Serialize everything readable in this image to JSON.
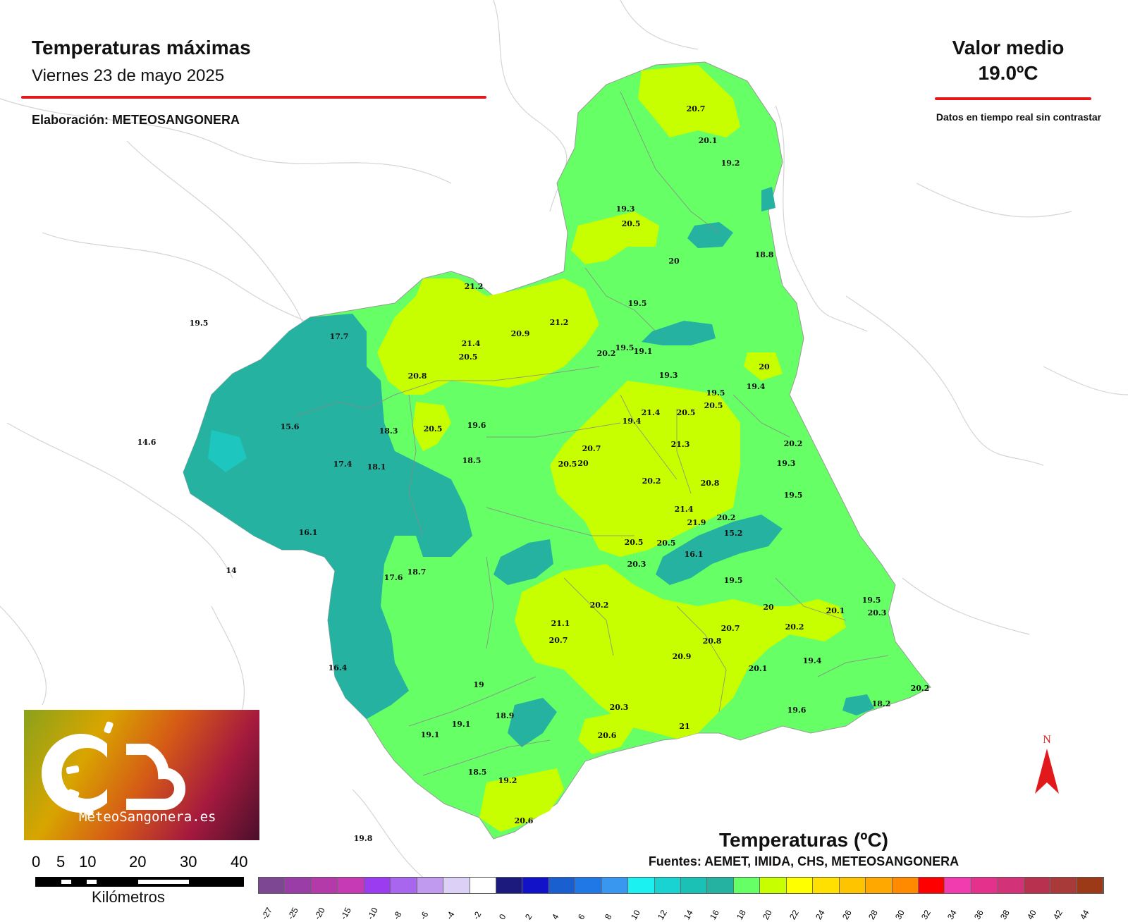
{
  "header": {
    "title": "Temperaturas máximas",
    "subtitle": "Viernes 23 de mayo 2025",
    "author": "Elaboración: METEOSANGONERA"
  },
  "summary": {
    "avg_label": "Valor medio",
    "avg_value": "19.0ºC",
    "disclaimer": "Datos en tiempo real sin contrastar"
  },
  "logo": {
    "text": "MeteoSangonera.es"
  },
  "scale": {
    "ticks": [
      "0",
      "5",
      "10",
      "20",
      "30",
      "40"
    ],
    "unit": "Kilómetros"
  },
  "legend": {
    "title": "Temperaturas (ºC)",
    "sources": "Fuentes: AEMET, IMIDA, CHS, METEOSANGONERA",
    "labels": [
      "-27",
      "-25",
      "-20",
      "-15",
      "-10",
      "-8",
      "-6",
      "-4",
      "-2",
      "0",
      "2",
      "4",
      "6",
      "8",
      "10",
      "12",
      "14",
      "16",
      "18",
      "20",
      "22",
      "24",
      "26",
      "28",
      "30",
      "32",
      "34",
      "36",
      "38",
      "40",
      "42",
      "44"
    ],
    "colors": [
      "#7d4794",
      "#9a3da6",
      "#b43aaa",
      "#c73ab6",
      "#9b3cf0",
      "#a866ef",
      "#c09aef",
      "#ddd0f6",
      "#ffffff",
      "#1c1a7d",
      "#1212c8",
      "#1a5fd0",
      "#1f78e6",
      "#3a97f0",
      "#1cf1f1",
      "#19d3d3",
      "#1cc1b5",
      "#25b2a1",
      "#66ff66",
      "#c8ff00",
      "#ffff00",
      "#ffe000",
      "#ffc400",
      "#ffa800",
      "#ff8a00",
      "#ff0000",
      "#f03caf",
      "#e4328c",
      "#d23278",
      "#b83250",
      "#a83a3a",
      "#9c3a18"
    ]
  },
  "north": {
    "label": "N"
  },
  "stations": [
    {
      "v": "20.7"
    },
    {
      "v": "20.1"
    },
    {
      "v": "19.2"
    },
    {
      "v": "19.3"
    },
    {
      "v": "20.5"
    },
    {
      "v": "20"
    },
    {
      "v": "18.8"
    },
    {
      "v": "21.2"
    },
    {
      "v": "19.5"
    },
    {
      "v": "21.2"
    },
    {
      "v": "20.9"
    },
    {
      "v": "21.4"
    },
    {
      "v": "20.5"
    },
    {
      "v": "17.7"
    },
    {
      "v": "19.5"
    },
    {
      "v": "20.2"
    },
    {
      "v": "19.5"
    },
    {
      "v": "19.1"
    },
    {
      "v": "20.8"
    },
    {
      "v": "19.3"
    },
    {
      "v": "20"
    },
    {
      "v": "19.4"
    },
    {
      "v": "19.5"
    },
    {
      "v": "20.5"
    },
    {
      "v": "21.4"
    },
    {
      "v": "20.5"
    },
    {
      "v": "19.4"
    },
    {
      "v": "15.6"
    },
    {
      "v": "18.3"
    },
    {
      "v": "20.5"
    },
    {
      "v": "19.6"
    },
    {
      "v": "14.6"
    },
    {
      "v": "21.3"
    },
    {
      "v": "20.2"
    },
    {
      "v": "20.7"
    },
    {
      "v": "20.5"
    },
    {
      "v": "20"
    },
    {
      "v": "18.5"
    },
    {
      "v": "17.4"
    },
    {
      "v": "18.1"
    },
    {
      "v": "19.3"
    },
    {
      "v": "20.2"
    },
    {
      "v": "20.8"
    },
    {
      "v": "19.5"
    },
    {
      "v": "21.4"
    },
    {
      "v": "16.1"
    },
    {
      "v": "21.9"
    },
    {
      "v": "20.2"
    },
    {
      "v": "15.2"
    },
    {
      "v": "20.5"
    },
    {
      "v": "20.5"
    },
    {
      "v": "16.1"
    },
    {
      "v": "20.3"
    },
    {
      "v": "14"
    },
    {
      "v": "17.6"
    },
    {
      "v": "18.7"
    },
    {
      "v": "19.5"
    },
    {
      "v": "19.5"
    },
    {
      "v": "20.3"
    },
    {
      "v": "20.2"
    },
    {
      "v": "20"
    },
    {
      "v": "20.1"
    },
    {
      "v": "21.1"
    },
    {
      "v": "20.7"
    },
    {
      "v": "20.2"
    },
    {
      "v": "20.7"
    },
    {
      "v": "20.8"
    },
    {
      "v": "20.9"
    },
    {
      "v": "20.1"
    },
    {
      "v": "19.4"
    },
    {
      "v": "16.4"
    },
    {
      "v": "19"
    },
    {
      "v": "20.2"
    },
    {
      "v": "20.3"
    },
    {
      "v": "19.6"
    },
    {
      "v": "18.2"
    },
    {
      "v": "19.1"
    },
    {
      "v": "18.9"
    },
    {
      "v": "19.1"
    },
    {
      "v": "21"
    },
    {
      "v": "20.6"
    },
    {
      "v": "18.5"
    },
    {
      "v": "19.2"
    },
    {
      "v": "20.6"
    },
    {
      "v": "19.8"
    }
  ]
}
